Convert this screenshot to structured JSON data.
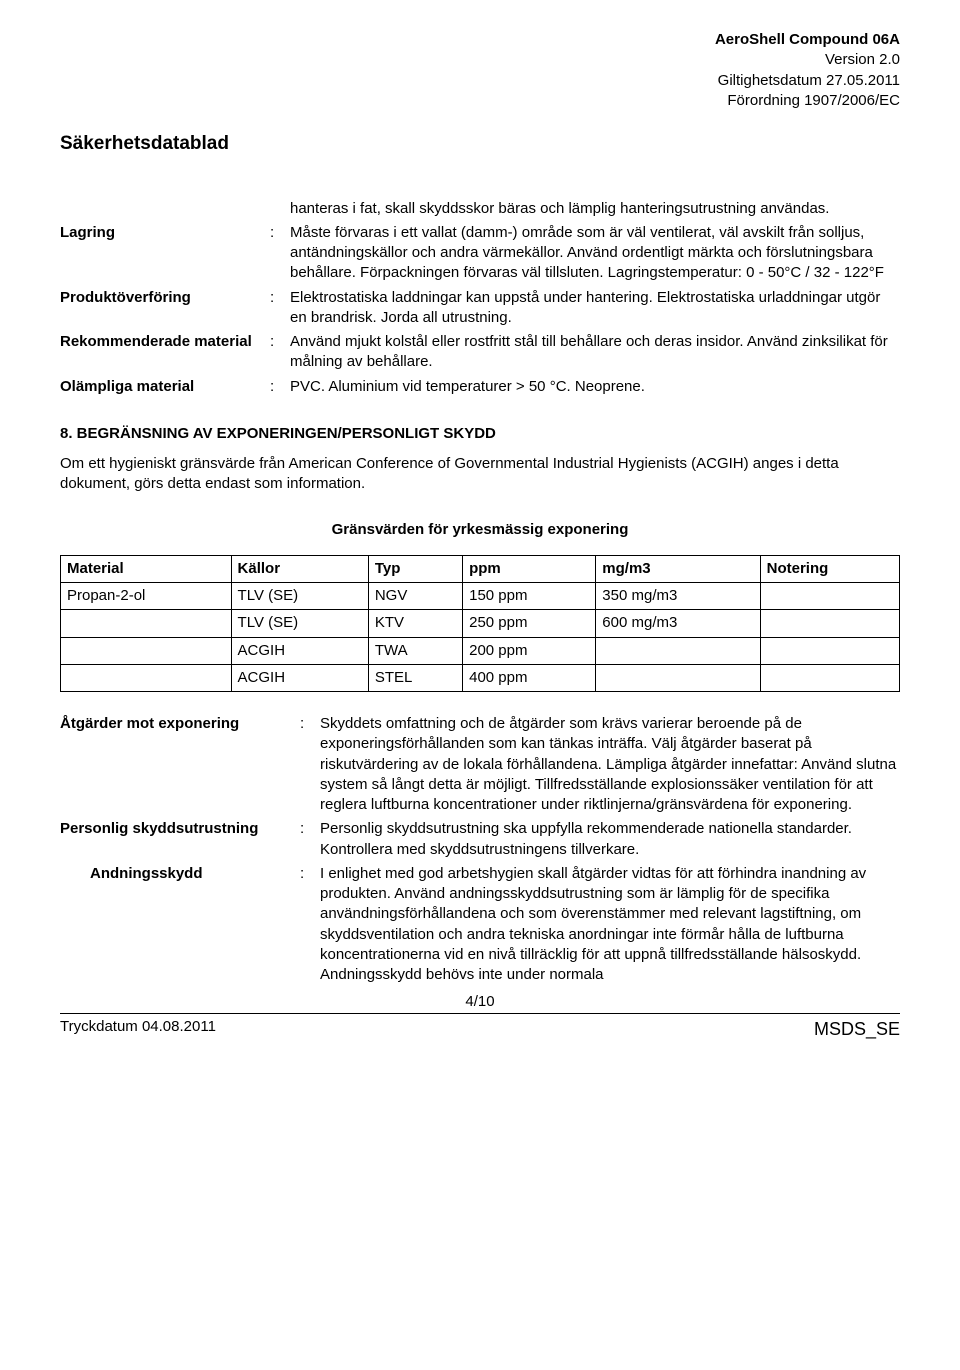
{
  "header": {
    "product": "AeroShell Compound 06A",
    "version": "Version 2.0",
    "date": "Giltighetsdatum 27.05.2011",
    "regulation": "Förordning 1907/2006/EC"
  },
  "sds_title": "Säkerhetsdatablad",
  "defs_top": [
    {
      "label": "",
      "value": "hanteras i fat, skall skyddsskor bäras och lämplig hanteringsutrustning användas."
    },
    {
      "label": "Lagring",
      "value": "Måste förvaras i ett vallat (damm-) område som är väl ventilerat, väl avskilt från solljus, antändningskällor och andra värmekällor. Använd ordentligt märkta och förslutningsbara behållare. Förpackningen förvaras väl tillsluten. Lagringstemperatur: 0 - 50°C / 32 - 122°F"
    },
    {
      "label": "Produktöverföring",
      "value": "Elektrostatiska laddningar kan uppstå under hantering. Elektrostatiska urladdningar utgör en brandrisk. Jorda all utrustning."
    },
    {
      "label": "Rekommenderade material",
      "value": "Använd mjukt kolstål eller rostfritt stål till behållare och deras insidor. Använd zinksilikat för målning av behållare."
    },
    {
      "label": "Olämpliga material",
      "value": "PVC. Aluminium vid temperaturer > 50 °C. Neoprene."
    }
  ],
  "section8": {
    "heading": "8. BEGRÄNSNING AV EXPONERINGEN/PERSONLIGT SKYDD",
    "intro": "Om ett hygieniskt gränsvärde från American Conference of Governmental Industrial Hygienists (ACGIH) anges i detta dokument, görs detta endast som information.",
    "table_title": "Gränsvärden för yrkesmässig exponering",
    "columns": [
      "Material",
      "Källor",
      "Typ",
      "ppm",
      "mg/m3",
      "Notering"
    ],
    "rows": [
      [
        "Propan-2-ol",
        "TLV (SE)",
        "NGV",
        "150 ppm",
        "350 mg/m3",
        ""
      ],
      [
        "",
        "TLV (SE)",
        "KTV",
        "250 ppm",
        "600 mg/m3",
        ""
      ],
      [
        "",
        "ACGIH",
        "TWA",
        "200 ppm",
        "",
        ""
      ],
      [
        "",
        "ACGIH",
        "STEL",
        "400 ppm",
        "",
        ""
      ]
    ],
    "defs": [
      {
        "label": "Åtgärder mot exponering",
        "indent": 0,
        "value": "Skyddets omfattning och de åtgärder som krävs varierar beroende på de exponeringsförhållanden som kan tänkas inträffa. Välj åtgärder baserat på riskutvärdering av de lokala förhållandena. Lämpliga åtgärder innefattar: Använd slutna system så långt detta är möjligt. Tillfredsställande explosionssäker ventilation för att reglera luftburna koncentrationer under riktlinjerna/gränsvärdena för exponering."
      },
      {
        "label": "Personlig skyddsutrustning",
        "indent": 0,
        "value": "Personlig skyddsutrustning ska uppfylla rekommenderade nationella standarder. Kontrollera med skyddsutrustningens tillverkare."
      },
      {
        "label": "Andningsskydd",
        "indent": 1,
        "value": "I enlighet med god arbetshygien skall åtgärder vidtas för att förhindra inandning av produkten. Använd andningsskyddsutrustning som är lämplig för de specifika användningsförhållandena och som överenstämmer med relevant lagstiftning, om skyddsventilation och andra tekniska anordningar inte förmår hålla de luftburna koncentrationerna vid en nivå tillräcklig för att uppnå tillfredsställande hälsoskydd. Andningsskydd behövs inte under normala"
      }
    ]
  },
  "footer": {
    "print_date": "Tryckdatum 04.08.2011",
    "page": "4/10",
    "msds": "MSDS_SE"
  }
}
